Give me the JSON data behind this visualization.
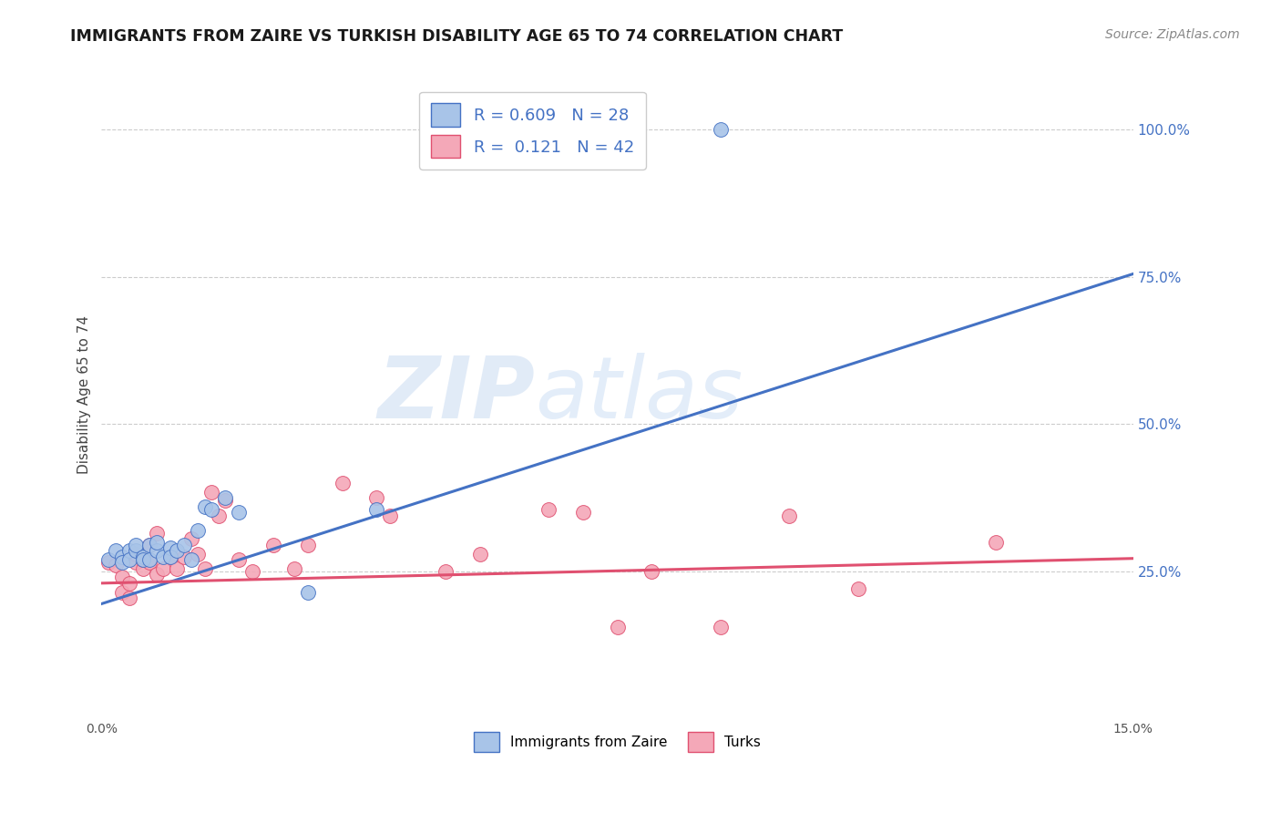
{
  "title": "IMMIGRANTS FROM ZAIRE VS TURKISH DISABILITY AGE 65 TO 74 CORRELATION CHART",
  "source": "Source: ZipAtlas.com",
  "ylabel": "Disability Age 65 to 74",
  "xlim": [
    0.0,
    0.15
  ],
  "ylim": [
    0.0,
    1.1
  ],
  "ytick_positions": [
    0.25,
    0.5,
    0.75,
    1.0
  ],
  "legend_text_1": "R = 0.609   N = 28",
  "legend_text_2": "R =  0.121   N = 42",
  "color_zaire": "#a8c4e8",
  "color_turks": "#f4a8b8",
  "trendline_color_zaire": "#4472c4",
  "trendline_color_turks": "#e05070",
  "watermark_zip": "ZIP",
  "watermark_atlas": "atlas",
  "background_color": "#ffffff",
  "grid_color": "#cccccc",
  "zaire_trendline_x": [
    0.0,
    0.15
  ],
  "zaire_trendline_y": [
    0.195,
    0.755
  ],
  "turks_trendline_x": [
    0.0,
    0.15
  ],
  "turks_trendline_y": [
    0.23,
    0.272
  ],
  "zaire_x": [
    0.001,
    0.002,
    0.003,
    0.003,
    0.004,
    0.004,
    0.005,
    0.005,
    0.006,
    0.006,
    0.007,
    0.007,
    0.008,
    0.008,
    0.009,
    0.01,
    0.01,
    0.011,
    0.012,
    0.013,
    0.014,
    0.015,
    0.016,
    0.018,
    0.02,
    0.03,
    0.04,
    0.09
  ],
  "zaire_y": [
    0.27,
    0.285,
    0.275,
    0.265,
    0.285,
    0.27,
    0.285,
    0.295,
    0.275,
    0.27,
    0.295,
    0.27,
    0.285,
    0.3,
    0.275,
    0.29,
    0.275,
    0.285,
    0.295,
    0.27,
    0.32,
    0.36,
    0.355,
    0.375,
    0.35,
    0.215,
    0.355,
    1.0
  ],
  "turks_x": [
    0.001,
    0.002,
    0.003,
    0.003,
    0.004,
    0.004,
    0.005,
    0.005,
    0.006,
    0.006,
    0.007,
    0.007,
    0.008,
    0.008,
    0.009,
    0.01,
    0.011,
    0.012,
    0.013,
    0.014,
    0.015,
    0.016,
    0.017,
    0.018,
    0.02,
    0.022,
    0.025,
    0.028,
    0.03,
    0.035,
    0.04,
    0.042,
    0.05,
    0.055,
    0.065,
    0.07,
    0.075,
    0.08,
    0.09,
    0.1,
    0.11,
    0.13
  ],
  "turks_y": [
    0.265,
    0.26,
    0.215,
    0.24,
    0.205,
    0.23,
    0.265,
    0.28,
    0.255,
    0.27,
    0.265,
    0.295,
    0.245,
    0.315,
    0.255,
    0.275,
    0.255,
    0.275,
    0.305,
    0.28,
    0.255,
    0.385,
    0.345,
    0.37,
    0.27,
    0.25,
    0.295,
    0.255,
    0.295,
    0.4,
    0.375,
    0.345,
    0.25,
    0.28,
    0.355,
    0.35,
    0.155,
    0.25,
    0.155,
    0.345,
    0.22,
    0.3
  ]
}
